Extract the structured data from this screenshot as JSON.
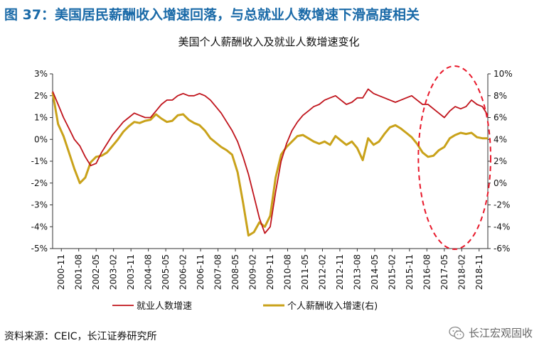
{
  "figure": {
    "title": "图 37：美国居民薪酬收入增速回落，与总就业人数增速下滑高度相关",
    "source": "资料来源：CEIC，长江证券研究所",
    "watermark": "长江宏观固收",
    "watermark_icon": "wechat-icon"
  },
  "colors": {
    "series1": "#c0141c",
    "series2": "#c9a21a",
    "highlight": "#e8182a",
    "title": "#1a6aa8"
  },
  "chart_data": {
    "type": "line",
    "title": "美国个人薪酬收入及就业人数增速变化",
    "ylim_left": [
      -5,
      3
    ],
    "yticks_left": [
      "3%",
      "2%",
      "1%",
      "0%",
      "-1%",
      "-2%",
      "-3%",
      "-4%",
      "-5%"
    ],
    "ylim_right": [
      -6,
      10
    ],
    "yticks_right": [
      "10%",
      "8%",
      "6%",
      "4%",
      "2%",
      "0%",
      "-2%",
      "-4%",
      "-6%"
    ],
    "xticks": [
      "2000-11",
      "2001-08",
      "2002-05",
      "2003-02",
      "2003-11",
      "2004-08",
      "2005-05",
      "2006-02",
      "2006-11",
      "2007-08",
      "2008-05",
      "2009-02",
      "2009-11",
      "2010-08",
      "2011-05",
      "2012-02",
      "2012-11",
      "2013-08",
      "2014-05",
      "2015-02",
      "2015-11",
      "2016-08",
      "2017-05",
      "2018-02",
      "2018-11"
    ],
    "legend_position": "bottom",
    "annotation": "dashed ellipse highlighting 2016-08 to 2018-11",
    "series": [
      {
        "name": "就业人数增速",
        "axis": "left",
        "values": [
          2.2,
          1.6,
          1.0,
          0.5,
          0.0,
          -0.3,
          -0.8,
          -1.2,
          -1.1,
          -0.6,
          -0.2,
          0.2,
          0.5,
          0.8,
          1.0,
          1.2,
          1.1,
          1.0,
          1.0,
          1.3,
          1.6,
          1.8,
          1.8,
          2.0,
          2.1,
          2.0,
          2.0,
          2.1,
          2.0,
          1.8,
          1.5,
          1.2,
          0.8,
          0.4,
          -0.1,
          -0.8,
          -1.6,
          -2.6,
          -3.6,
          -4.3,
          -4.0,
          -2.4,
          -1.0,
          -0.2,
          0.4,
          0.8,
          1.1,
          1.3,
          1.5,
          1.6,
          1.8,
          1.9,
          2.0,
          1.8,
          1.6,
          1.7,
          1.9,
          1.9,
          2.3,
          2.1,
          2.0,
          1.9,
          1.8,
          1.7,
          1.8,
          1.9,
          2.0,
          1.8,
          1.6,
          1.6,
          1.4,
          1.2,
          1.0,
          1.3,
          1.5,
          1.4,
          1.5,
          1.8,
          1.6,
          1.5,
          1.1
        ]
      },
      {
        "name": "个人薪酬收入增速(右)",
        "axis": "right",
        "values": [
          8.3,
          5.4,
          4.3,
          2.8,
          1.3,
          0.0,
          0.5,
          1.9,
          2.4,
          2.5,
          2.8,
          3.4,
          4.0,
          4.7,
          5.2,
          5.6,
          5.5,
          5.7,
          5.8,
          6.3,
          5.9,
          5.6,
          5.7,
          6.2,
          6.3,
          5.8,
          5.5,
          5.3,
          4.8,
          4.1,
          3.7,
          3.3,
          3.0,
          2.6,
          1.0,
          -1.8,
          -4.8,
          -4.5,
          -3.6,
          -4.0,
          -3.0,
          0.5,
          2.6,
          3.3,
          3.8,
          4.3,
          4.4,
          4.1,
          3.8,
          3.6,
          3.8,
          3.5,
          4.3,
          3.9,
          3.5,
          3.8,
          3.2,
          2.1,
          4.1,
          3.5,
          3.8,
          4.5,
          5.1,
          5.3,
          5.0,
          4.6,
          4.2,
          3.6,
          2.8,
          2.4,
          2.5,
          3.0,
          3.3,
          4.1,
          4.4,
          4.6,
          4.5,
          4.6,
          4.2,
          4.1,
          4.1
        ]
      }
    ]
  }
}
